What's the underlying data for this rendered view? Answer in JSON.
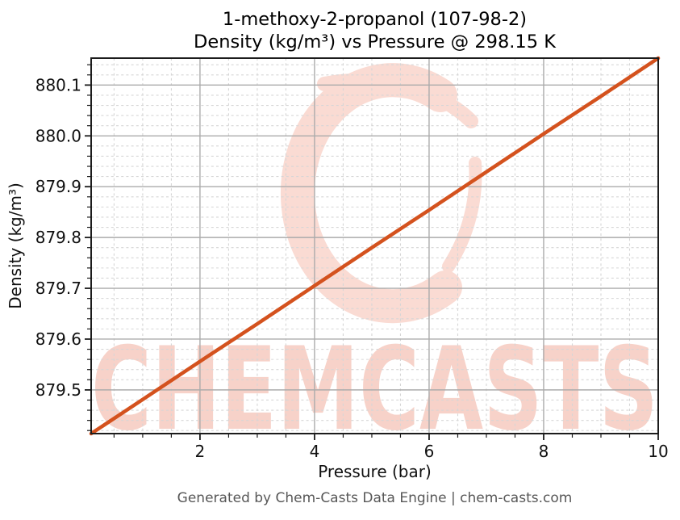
{
  "title": {
    "line1": "1-methoxy-2-propanol (107-98-2)",
    "line2": "Density (kg/m³) vs Pressure @ 298.15 K"
  },
  "footer": {
    "text": "Generated by Chem-Casts Data Engine | chem-casts.com"
  },
  "watermark": {
    "text": "CHEMCASTS",
    "logo": "chemcasts-c-swirl"
  },
  "colors": {
    "line": "#d4521e",
    "major_grid": "#ababab",
    "minor_grid": "#d6d6d6",
    "spine": "#1c1c1c",
    "tick_text": "#111111",
    "footer_text": "#575757",
    "watermark_text": "#f7d2c9",
    "watermark_logo": "#fadbd3"
  },
  "axes": {
    "xlabel": "Pressure (bar)",
    "ylabel": "Density (kg/m³)",
    "x_ticks": [
      2,
      4,
      6,
      8,
      10
    ],
    "x_tick_labels": [
      "2",
      "4",
      "6",
      "8",
      "10"
    ],
    "y_ticks": [
      879.5,
      879.6,
      879.7,
      879.8,
      879.9,
      880.0,
      880.1
    ],
    "y_tick_labels": [
      "879.5",
      "879.6",
      "879.7",
      "879.8",
      "879.9",
      "880.0",
      "880.1"
    ],
    "xlim": [
      0.1,
      10
    ],
    "ylim": [
      879.414,
      880.153
    ],
    "x_minor_step": 0.5,
    "y_minor_step": 0.02
  },
  "chart_data": {
    "type": "line",
    "title": "1-methoxy-2-propanol (107-98-2) — Density (kg/m³) vs Pressure @ 298.15 K",
    "xlabel": "Pressure (bar)",
    "ylabel": "Density (kg/m³)",
    "xlim": [
      0.1,
      10
    ],
    "ylim": [
      879.414,
      880.153
    ],
    "grid": "major solid + minor dashed",
    "legend_position": "none",
    "series": [
      {
        "name": "Density @ 298.15 K",
        "color": "#d4521e",
        "x": [
          0.1,
          1,
          2,
          3,
          4,
          5,
          6,
          7,
          8,
          9,
          10
        ],
        "y": [
          879.414,
          879.481,
          879.556,
          879.63,
          879.705,
          879.78,
          879.854,
          879.929,
          880.004,
          880.078,
          880.153
        ]
      }
    ]
  }
}
